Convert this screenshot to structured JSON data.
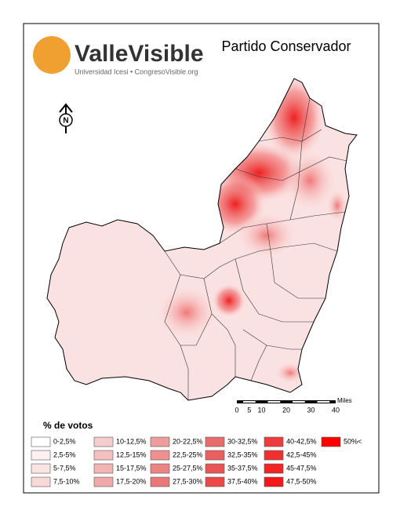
{
  "logo": {
    "title": "ValleVisible",
    "subtitle": "Universidad Icesi • CongresoVisible.org"
  },
  "title": "Partido Conservador",
  "north": "N",
  "scale": {
    "unit": "Miles",
    "ticks": [
      "0",
      "5",
      "10",
      "20",
      "30",
      "40"
    ]
  },
  "legend": {
    "title": "% de votos",
    "items": [
      {
        "label": "0-2,5%",
        "color": "#ffffff"
      },
      {
        "label": "2,5-5%",
        "color": "#fdf0f0"
      },
      {
        "label": "5-7,5%",
        "color": "#fbe4e4"
      },
      {
        "label": "7,5-10%",
        "color": "#f9d8d8"
      },
      {
        "label": "10-12,5%",
        "color": "#f7cccc"
      },
      {
        "label": "12,5-15%",
        "color": "#f5c0c0"
      },
      {
        "label": "15-17,5%",
        "color": "#f3b4b4"
      },
      {
        "label": "17,5-20%",
        "color": "#f1a8a8"
      },
      {
        "label": "20-22,5%",
        "color": "#ef9c9c"
      },
      {
        "label": "22,5-25%",
        "color": "#ee9090"
      },
      {
        "label": "25-27,5%",
        "color": "#ec8484"
      },
      {
        "label": "27,5-30%",
        "color": "#ea7878"
      },
      {
        "label": "30-32,5%",
        "color": "#e86c6c"
      },
      {
        "label": "32,5-35%",
        "color": "#e86060"
      },
      {
        "label": "35-37,5%",
        "color": "#ea5454"
      },
      {
        "label": "37,5-40%",
        "color": "#ec4848"
      },
      {
        "label": "40-42,5%",
        "color": "#ee3c3c"
      },
      {
        "label": "42,5-45%",
        "color": "#f03030"
      },
      {
        "label": "45-47,5%",
        "color": "#f22424"
      },
      {
        "label": "47,5-50%",
        "color": "#f41818"
      },
      {
        "label": "50%<",
        "color": "#ff0000"
      }
    ]
  }
}
